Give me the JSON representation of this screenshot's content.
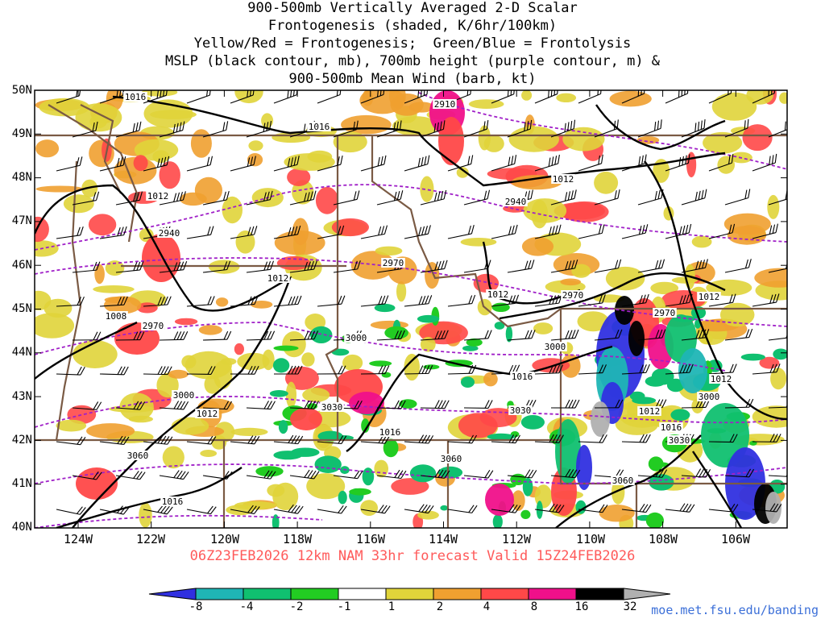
{
  "title": {
    "line1": "900-500mb Vertically Averaged 2-D Scalar",
    "line2": "Frontogenesis (shaded, K/6hr/100km)",
    "line3": "Yellow/Red = Frontogenesis;  Green/Blue = Frontolysis",
    "line4": "MSLP (black contour, mb), 700mb height (purple contour, m) &",
    "line5": "900-500mb Mean Wind (barb, kt)"
  },
  "axes": {
    "lat_labels": [
      "50N",
      "49N",
      "48N",
      "47N",
      "46N",
      "45N",
      "44N",
      "43N",
      "42N",
      "41N",
      "40N"
    ],
    "lon_labels": [
      "124W",
      "122W",
      "120W",
      "118W",
      "116W",
      "114W",
      "112W",
      "110W",
      "108W",
      "106W"
    ]
  },
  "valid_time": "06Z23FEB2026 12km NAM 33hr forecast Valid 15Z24FEB2026",
  "colorbar": {
    "labels": [
      "-8",
      "-4",
      "-2",
      "-1",
      "1",
      "2",
      "4",
      "8",
      "16",
      "32"
    ],
    "colors": [
      "#3030e0",
      "#1fb5b5",
      "#10c070",
      "#22cc22",
      "#ffffff",
      "#e0d43a",
      "#f0a030",
      "#ff4848",
      "#f0108a",
      "#000000",
      "#b0b0b0"
    ]
  },
  "site_url": "moe.met.fsu.edu/banding",
  "contour_labels": {
    "mslp": [
      "1016",
      "1016",
      "1012",
      "1012",
      "1012",
      "1008",
      "1012",
      "1016",
      "1012",
      "1016",
      "1012",
      "1012",
      "1016",
      "1016",
      "1012"
    ],
    "height": [
      "2910",
      "2940",
      "2940",
      "2970",
      "2970",
      "2970",
      "2970",
      "3000",
      "3000",
      "3000",
      "3030",
      "3030",
      "3060",
      "3060",
      "3060",
      "3000",
      "3030"
    ]
  },
  "map_colors": {
    "border": "#7a5a44",
    "mslp": "#000000",
    "height": "#a020c8"
  }
}
